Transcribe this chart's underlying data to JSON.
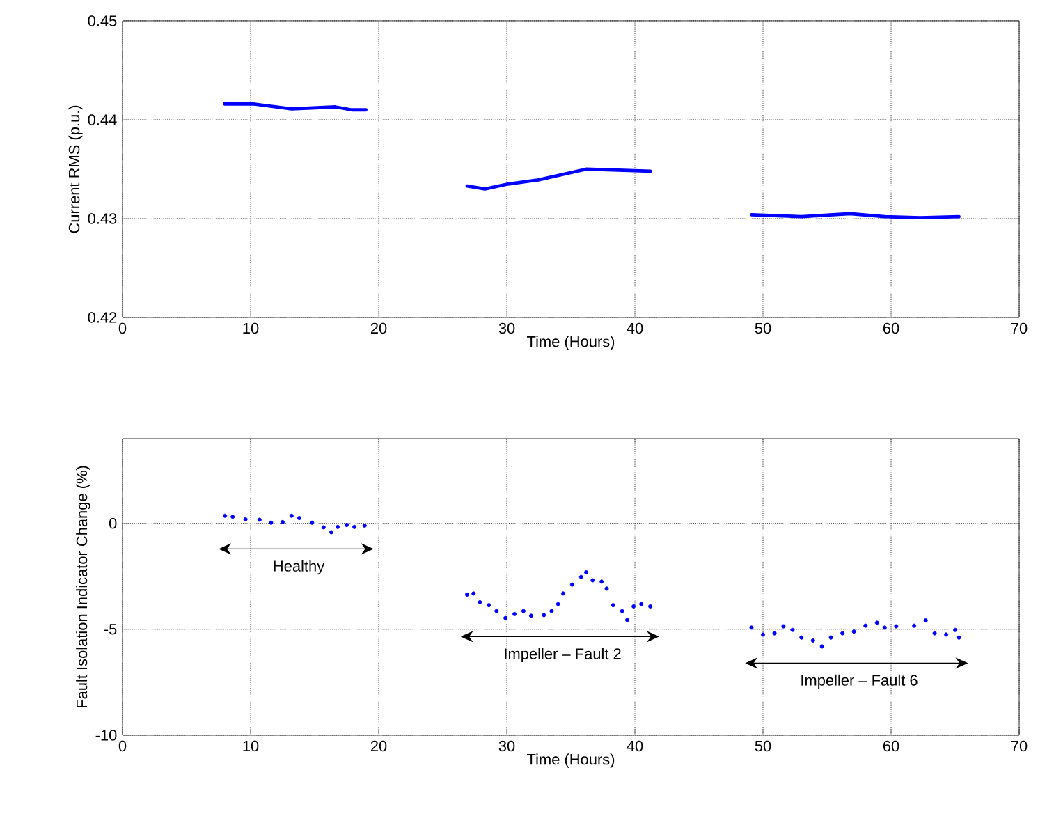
{
  "chart_data": [
    {
      "type": "line",
      "xlabel": "Time (Hours)",
      "ylabel": "Current RMS (p.u.)",
      "xlim": [
        0,
        70
      ],
      "ylim": [
        0.42,
        0.45
      ],
      "xticks": [
        0,
        10,
        20,
        30,
        40,
        50,
        60,
        70
      ],
      "yticks": [
        0.42,
        0.43,
        0.44,
        0.45
      ],
      "grid": true,
      "line_style": "solid",
      "marker": "none",
      "series": [
        {
          "color": "#0000ff",
          "x": [
            7.96,
            10.2,
            13.2,
            16.6,
            17.9,
            19.0
          ],
          "values": [
            0.4416,
            0.4416,
            0.4411,
            0.4413,
            0.441,
            0.441
          ]
        },
        {
          "color": "#0000ff",
          "x": [
            26.9,
            28.3,
            30.1,
            32.4,
            36.2,
            38.7,
            41.2
          ],
          "values": [
            0.4333,
            0.433,
            0.4335,
            0.4339,
            0.435,
            0.4349,
            0.4348
          ]
        },
        {
          "color": "#0000ff",
          "x": [
            49.1,
            53.0,
            56.8,
            59.5,
            62.3,
            65.3
          ],
          "values": [
            0.4304,
            0.4302,
            0.4305,
            0.4302,
            0.4301,
            0.4302
          ]
        }
      ]
    },
    {
      "type": "scatter",
      "xlabel": "Time (Hours)",
      "ylabel": "Fault Isolation Indicator Change (%)",
      "xlim": [
        0,
        70
      ],
      "ylim": [
        -10,
        4
      ],
      "xticks": [
        0,
        10,
        20,
        30,
        40,
        50,
        60,
        70
      ],
      "yticks": [
        -10,
        -5,
        0
      ],
      "grid": true,
      "marker": "circle",
      "series": [
        {
          "color": "#0000ff",
          "x": [
            8.0,
            8.6,
            9.6,
            10.7,
            11.6,
            12.5,
            13.2,
            13.8,
            14.8,
            15.7,
            16.3,
            16.8,
            17.5,
            18.1,
            18.9
          ],
          "values": [
            0.36,
            0.31,
            0.19,
            0.17,
            0.03,
            0.06,
            0.36,
            0.25,
            0.03,
            -0.19,
            -0.42,
            -0.17,
            -0.08,
            -0.17,
            -0.11
          ]
        },
        {
          "color": "#0000ff",
          "x": [
            26.9,
            27.4,
            27.9,
            28.6,
            29.2,
            29.9,
            30.6,
            31.3,
            31.9,
            32.9,
            33.5,
            34.0,
            34.4,
            35.1,
            35.8,
            36.2,
            36.7,
            37.4,
            37.8,
            38.3,
            39.0,
            39.4,
            39.9,
            40.5,
            41.2
          ],
          "values": [
            -3.36,
            -3.31,
            -3.72,
            -3.86,
            -4.14,
            -4.47,
            -4.28,
            -4.14,
            -4.36,
            -4.33,
            -4.14,
            -3.81,
            -3.31,
            -2.89,
            -2.53,
            -2.31,
            -2.69,
            -2.75,
            -3.08,
            -3.86,
            -4.14,
            -4.56,
            -3.92,
            -3.81,
            -3.92
          ]
        },
        {
          "color": "#0000ff",
          "x": [
            49.1,
            50.0,
            50.9,
            51.6,
            52.3,
            53.0,
            53.9,
            54.6,
            55.3,
            56.2,
            57.1,
            58.0,
            58.9,
            59.5,
            60.4,
            61.8,
            62.7,
            63.4,
            64.3,
            65.0,
            65.3
          ],
          "values": [
            -4.92,
            -5.25,
            -5.19,
            -4.86,
            -5.03,
            -5.39,
            -5.53,
            -5.81,
            -5.39,
            -5.19,
            -5.11,
            -4.83,
            -4.69,
            -4.92,
            -4.86,
            -4.83,
            -4.58,
            -5.19,
            -5.25,
            -5.03,
            -5.39
          ]
        }
      ],
      "annotations": [
        "Healthy",
        "Impeller – Fault 2",
        "Impeller – Fault 6"
      ]
    }
  ]
}
